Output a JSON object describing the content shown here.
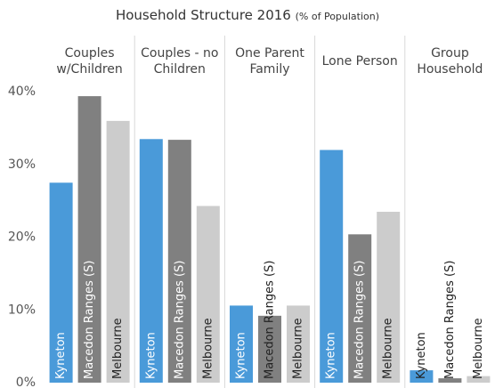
{
  "chart_data": {
    "type": "bar",
    "title": "Household Structure 2016",
    "subtitle": "(% of Population)",
    "categories": [
      "Couples w/Children",
      "Couples - no Children",
      "One Parent Family",
      "Lone Person",
      "Group Household"
    ],
    "series": [
      {
        "name": "Kyneton",
        "color": "#4a9ad9",
        "values": [
          27.5,
          33.5,
          10.6,
          32,
          1.7
        ]
      },
      {
        "name": "Macedon Ranges (S)",
        "color": "#808080",
        "values": [
          39.4,
          33.4,
          9.2,
          20.4,
          0.6
        ]
      },
      {
        "name": "Melbourne",
        "color": "#cccccc",
        "values": [
          36,
          24.3,
          10.6,
          23.5,
          0.9
        ]
      }
    ],
    "ylim": [
      0,
      41
    ],
    "yticks": [
      {
        "value": 0,
        "label": "0%"
      },
      {
        "value": 10,
        "label": "10%"
      },
      {
        "value": 20,
        "label": "20%"
      },
      {
        "value": 30,
        "label": "30%"
      },
      {
        "value": 40,
        "label": "40%"
      }
    ],
    "grid": false
  }
}
